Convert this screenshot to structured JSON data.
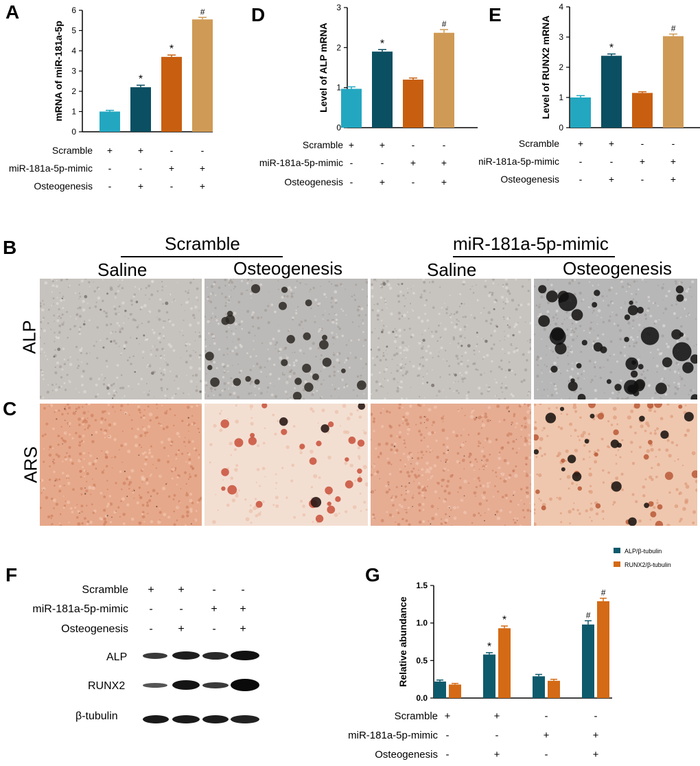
{
  "panels": {
    "A": "A",
    "B": "B",
    "C": "C",
    "D": "D",
    "E": "E",
    "F": "F",
    "G": "G"
  },
  "conditions": {
    "labels": [
      "Scramble",
      "miR-181a-5p-mimic",
      "Osteogenesis"
    ],
    "columns": [
      [
        "+",
        "-",
        "-"
      ],
      [
        "+",
        "-",
        "+"
      ],
      [
        "-",
        "+",
        "-"
      ],
      [
        "-",
        "+",
        "+"
      ]
    ]
  },
  "colors": {
    "teal": "#23a7c0",
    "navy": "#0b4f62",
    "orange": "#c85f10",
    "tan": "#cf9a55",
    "g_alp": "#0d5a6c",
    "g_runx2": "#d46a15"
  },
  "chart_data": [
    {
      "id": "A",
      "type": "bar",
      "ylabel": "mRNA of miR-181a-5p",
      "ylim": [
        0,
        6
      ],
      "yticks": [
        "0",
        "1",
        "2",
        "3",
        "4",
        "5",
        "6"
      ],
      "values": [
        1.0,
        2.2,
        3.7,
        5.55
      ],
      "errors": [
        0.06,
        0.1,
        0.09,
        0.1
      ],
      "annotations": [
        "",
        "*",
        "*",
        "#"
      ]
    },
    {
      "id": "D",
      "type": "bar",
      "ylabel": "Level of ALP mRNA",
      "ylim": [
        0,
        3
      ],
      "yticks": [
        "0",
        "1",
        "2",
        "3"
      ],
      "values": [
        0.97,
        1.9,
        1.2,
        2.37
      ],
      "errors": [
        0.05,
        0.05,
        0.04,
        0.08
      ],
      "annotations": [
        "",
        "*",
        "",
        "#"
      ]
    },
    {
      "id": "E",
      "type": "bar",
      "ylabel": "Level of RUNX2 mRNA",
      "ylim": [
        0,
        4
      ],
      "yticks": [
        "0",
        "1",
        "2",
        "3",
        "4"
      ],
      "values": [
        1.0,
        2.38,
        1.15,
        3.03
      ],
      "errors": [
        0.06,
        0.06,
        0.04,
        0.07
      ],
      "annotations": [
        "",
        "*",
        "",
        "#"
      ]
    },
    {
      "id": "G",
      "type": "bar",
      "ylabel": "Relative abundance",
      "ylim": [
        0,
        1.5
      ],
      "yticks": [
        "0.0",
        "0.5",
        "1.0",
        "1.5"
      ],
      "series": [
        {
          "name": "ALP/β-tubulin",
          "values": [
            0.22,
            0.58,
            0.29,
            0.98
          ],
          "errors": [
            0.02,
            0.025,
            0.025,
            0.05
          ],
          "annotations": [
            "",
            "*",
            "",
            "#"
          ]
        },
        {
          "name": "RUNX2/β-tubulin",
          "values": [
            0.18,
            0.93,
            0.23,
            1.29
          ],
          "errors": [
            0.015,
            0.03,
            0.02,
            0.04
          ],
          "annotations": [
            "",
            "*",
            "",
            "#"
          ]
        }
      ]
    }
  ],
  "stain_panel": {
    "group_scramble": "Scramble",
    "group_mimic": "miR-181a-5p-mimic",
    "col_headers": [
      "Saline",
      "Osteogenesis",
      "Saline",
      "Osteogenesis"
    ],
    "row_alp": "ALP",
    "row_ars": "ARS"
  },
  "western": {
    "bands": [
      "ALP",
      "RUNX2",
      "β-tubulin"
    ]
  }
}
